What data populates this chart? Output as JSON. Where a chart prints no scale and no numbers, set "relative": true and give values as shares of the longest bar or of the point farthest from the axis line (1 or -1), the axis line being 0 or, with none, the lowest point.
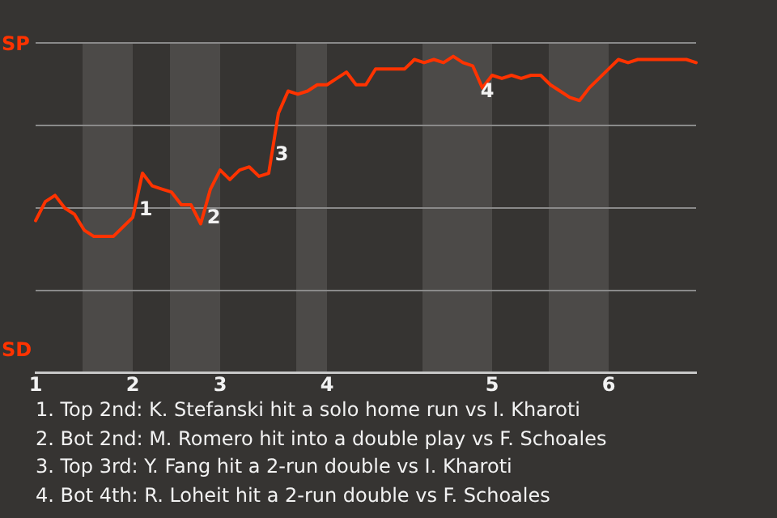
{
  "chart_data": {
    "type": "line",
    "relative": true,
    "categories": [
      "1",
      null,
      null,
      null,
      null,
      null,
      null,
      null,
      null,
      null,
      "2",
      null,
      null,
      null,
      null,
      null,
      null,
      null,
      null,
      "3",
      null,
      null,
      null,
      null,
      null,
      null,
      null,
      null,
      null,
      null,
      "4",
      null,
      null,
      null,
      null,
      null,
      null,
      null,
      null,
      null,
      null,
      null,
      null,
      null,
      null,
      null,
      null,
      "5",
      null,
      null,
      null,
      null,
      null,
      null,
      null,
      null,
      null,
      null,
      null,
      "6",
      null,
      null,
      null,
      null,
      null,
      null,
      null,
      null,
      null
    ],
    "series": [
      {
        "color": "#ff3300",
        "values": [
          0.48,
          0.54,
          0.56,
          0.52,
          0.5,
          0.45,
          0.43,
          0.43,
          0.43,
          0.46,
          0.49,
          0.63,
          0.59,
          0.58,
          0.57,
          0.53,
          0.53,
          0.47,
          0.58,
          0.64,
          0.61,
          0.64,
          0.65,
          0.62,
          0.63,
          0.82,
          0.89,
          0.88,
          0.89,
          0.91,
          0.91,
          0.93,
          0.95,
          0.91,
          0.91,
          0.96,
          0.96,
          0.96,
          0.96,
          0.99,
          0.98,
          0.99,
          0.98,
          1,
          0.98,
          0.97,
          0.9,
          0.94,
          0.93,
          0.94,
          0.93,
          0.94,
          0.94,
          0.91,
          0.89,
          0.87,
          0.86,
          0.9,
          0.93,
          0.96,
          0.99,
          0.98,
          0.99,
          0.99,
          0.99,
          0.99,
          0.99,
          0.99,
          0.98
        ]
      }
    ],
    "grid": "y",
    "legend": false,
    "marker": "none",
    "line_style": "solid",
    "annotations": [
      "SP",
      "SD",
      "1",
      "2",
      "3",
      "4",
      "1. Top 2nd: K. Stefanski hit a solo home run vs I. Kharoti",
      "2. Bot 2nd: M. Romero hit into a double play vs F. Schoales",
      "3. Top 3rd: Y. Fang hit a 2-run double vs I. Kharoti",
      "4. Bot 4th: R. Loheit hit a 2-run double vs F. Schoales"
    ]
  }
}
